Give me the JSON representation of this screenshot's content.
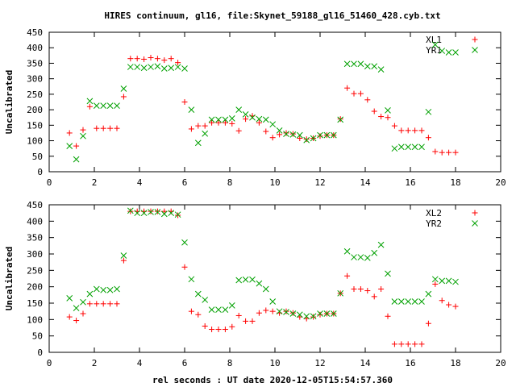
{
  "page": {
    "title": "HIRES continuum, gl16, file:Skynet_59188_gl16_51460_428.cyb.txt",
    "xlabel": "rel seconds : UT date 2020-12-05T15:54:57.360"
  },
  "colors": {
    "series_1": "#ff0000",
    "series_2": "#00a000",
    "axes": "#000000"
  },
  "chart_data": [
    {
      "type": "scatter",
      "title": "HIRES continuum, gl16, file:Skynet_59188_gl16_51460_428.cyb.txt",
      "xlabel": "",
      "ylabel": "Uncalibrated",
      "xlim": [
        0,
        20
      ],
      "ylim": [
        0,
        450
      ],
      "xticks": [
        0,
        2,
        4,
        6,
        8,
        10,
        12,
        14,
        16,
        18,
        20
      ],
      "yticks": [
        0,
        50,
        100,
        150,
        200,
        250,
        300,
        350,
        400,
        450
      ],
      "grid": false,
      "legend": "top-right",
      "series": [
        {
          "name": "XL1",
          "marker": "plus",
          "color": "#ff0000",
          "points": [
            [
              0.9,
              125
            ],
            [
              1.2,
              83
            ],
            [
              1.5,
              135
            ],
            [
              1.8,
              210
            ],
            [
              2.1,
              140
            ],
            [
              2.4,
              140
            ],
            [
              2.7,
              140
            ],
            [
              3.0,
              140
            ],
            [
              3.3,
              242
            ],
            [
              3.6,
              365
            ],
            [
              3.9,
              365
            ],
            [
              4.2,
              363
            ],
            [
              4.5,
              368
            ],
            [
              4.8,
              365
            ],
            [
              5.1,
              360
            ],
            [
              5.4,
              365
            ],
            [
              5.7,
              352
            ],
            [
              6.0,
              225
            ],
            [
              6.3,
              138
            ],
            [
              6.6,
              148
            ],
            [
              6.9,
              148
            ],
            [
              7.2,
              158
            ],
            [
              7.5,
              158
            ],
            [
              7.8,
              158
            ],
            [
              8.1,
              155
            ],
            [
              8.4,
              132
            ],
            [
              8.7,
              170
            ],
            [
              9.0,
              180
            ],
            [
              9.3,
              158
            ],
            [
              9.6,
              130
            ],
            [
              9.9,
              110
            ],
            [
              10.2,
              120
            ],
            [
              10.5,
              125
            ],
            [
              10.8,
              122
            ],
            [
              11.1,
              108
            ],
            [
              11.4,
              105
            ],
            [
              11.7,
              108
            ],
            [
              12.0,
              115
            ],
            [
              12.3,
              118
            ],
            [
              12.6,
              118
            ],
            [
              12.9,
              170
            ],
            [
              13.2,
              270
            ],
            [
              13.5,
              252
            ],
            [
              13.8,
              252
            ],
            [
              14.1,
              232
            ],
            [
              14.4,
              195
            ],
            [
              14.7,
              178
            ],
            [
              15.0,
              175
            ],
            [
              15.3,
              148
            ],
            [
              15.6,
              133
            ],
            [
              15.9,
              133
            ],
            [
              16.2,
              133
            ],
            [
              16.5,
              133
            ],
            [
              16.8,
              110
            ],
            [
              17.1,
              65
            ],
            [
              17.4,
              62
            ],
            [
              17.7,
              62
            ],
            [
              18.0,
              62
            ]
          ]
        },
        {
          "name": "YR1",
          "marker": "cross",
          "color": "#00a000",
          "points": [
            [
              0.9,
              83
            ],
            [
              1.2,
              40
            ],
            [
              1.5,
              115
            ],
            [
              1.8,
              228
            ],
            [
              2.1,
              213
            ],
            [
              2.4,
              213
            ],
            [
              2.7,
              213
            ],
            [
              3.0,
              213
            ],
            [
              3.3,
              268
            ],
            [
              3.6,
              338
            ],
            [
              3.9,
              338
            ],
            [
              4.2,
              335
            ],
            [
              4.5,
              338
            ],
            [
              4.8,
              340
            ],
            [
              5.1,
              333
            ],
            [
              5.4,
              335
            ],
            [
              5.7,
              338
            ],
            [
              6.0,
              333
            ],
            [
              6.3,
              200
            ],
            [
              6.6,
              93
            ],
            [
              6.9,
              123
            ],
            [
              7.2,
              168
            ],
            [
              7.5,
              168
            ],
            [
              7.8,
              168
            ],
            [
              8.1,
              172
            ],
            [
              8.4,
              200
            ],
            [
              8.7,
              185
            ],
            [
              9.0,
              175
            ],
            [
              9.3,
              170
            ],
            [
              9.6,
              168
            ],
            [
              9.9,
              153
            ],
            [
              10.2,
              133
            ],
            [
              10.5,
              122
            ],
            [
              10.8,
              120
            ],
            [
              11.1,
              118
            ],
            [
              11.4,
              102
            ],
            [
              11.7,
              108
            ],
            [
              12.0,
              118
            ],
            [
              12.3,
              118
            ],
            [
              12.6,
              118
            ],
            [
              12.9,
              168
            ],
            [
              13.2,
              348
            ],
            [
              13.5,
              348
            ],
            [
              13.8,
              348
            ],
            [
              14.1,
              340
            ],
            [
              14.4,
              340
            ],
            [
              14.7,
              330
            ],
            [
              15.0,
              198
            ],
            [
              15.3,
              75
            ],
            [
              15.6,
              80
            ],
            [
              15.9,
              80
            ],
            [
              16.2,
              80
            ],
            [
              16.5,
              80
            ],
            [
              16.8,
              193
            ],
            [
              17.1,
              410
            ],
            [
              17.4,
              390
            ],
            [
              17.7,
              385
            ],
            [
              18.0,
              385
            ]
          ]
        }
      ]
    },
    {
      "type": "scatter",
      "title": "",
      "xlabel": "rel seconds : UT date 2020-12-05T15:54:57.360",
      "ylabel": "Uncalibrated",
      "xlim": [
        0,
        20
      ],
      "ylim": [
        0,
        450
      ],
      "xticks": [
        0,
        2,
        4,
        6,
        8,
        10,
        12,
        14,
        16,
        18,
        20
      ],
      "yticks": [
        0,
        50,
        100,
        150,
        200,
        250,
        300,
        350,
        400,
        450
      ],
      "grid": false,
      "legend": "top-right",
      "series": [
        {
          "name": "XL2",
          "marker": "plus",
          "color": "#ff0000",
          "points": [
            [
              0.9,
              108
            ],
            [
              1.2,
              97
            ],
            [
              1.5,
              118
            ],
            [
              1.8,
              148
            ],
            [
              2.1,
              148
            ],
            [
              2.4,
              148
            ],
            [
              2.7,
              148
            ],
            [
              3.0,
              148
            ],
            [
              3.3,
              280
            ],
            [
              3.6,
              430
            ],
            [
              3.9,
              430
            ],
            [
              4.2,
              430
            ],
            [
              4.5,
              430
            ],
            [
              4.8,
              430
            ],
            [
              5.1,
              430
            ],
            [
              5.4,
              430
            ],
            [
              5.7,
              418
            ],
            [
              6.0,
              260
            ],
            [
              6.3,
              125
            ],
            [
              6.6,
              115
            ],
            [
              6.9,
              80
            ],
            [
              7.2,
              70
            ],
            [
              7.5,
              70
            ],
            [
              7.8,
              70
            ],
            [
              8.1,
              78
            ],
            [
              8.4,
              112
            ],
            [
              8.7,
              95
            ],
            [
              9.0,
              95
            ],
            [
              9.3,
              120
            ],
            [
              9.6,
              128
            ],
            [
              9.9,
              125
            ],
            [
              10.2,
              120
            ],
            [
              10.5,
              125
            ],
            [
              10.8,
              120
            ],
            [
              11.1,
              108
            ],
            [
              11.4,
              103
            ],
            [
              11.7,
              108
            ],
            [
              12.0,
              115
            ],
            [
              12.3,
              118
            ],
            [
              12.6,
              118
            ],
            [
              12.9,
              180
            ],
            [
              13.2,
              233
            ],
            [
              13.5,
              193
            ],
            [
              13.8,
              193
            ],
            [
              14.1,
              188
            ],
            [
              14.4,
              170
            ],
            [
              14.7,
              193
            ],
            [
              15.0,
              110
            ],
            [
              15.3,
              25
            ],
            [
              15.6,
              25
            ],
            [
              15.9,
              25
            ],
            [
              16.2,
              25
            ],
            [
              16.5,
              25
            ],
            [
              16.8,
              88
            ],
            [
              17.1,
              208
            ],
            [
              17.4,
              158
            ],
            [
              17.7,
              145
            ],
            [
              18.0,
              140
            ]
          ]
        },
        {
          "name": "YR2",
          "marker": "cross",
          "color": "#00a000",
          "points": [
            [
              0.9,
              165
            ],
            [
              1.2,
              135
            ],
            [
              1.5,
              153
            ],
            [
              1.8,
              178
            ],
            [
              2.1,
              193
            ],
            [
              2.4,
              190
            ],
            [
              2.7,
              190
            ],
            [
              3.0,
              193
            ],
            [
              3.3,
              295
            ],
            [
              3.6,
              432
            ],
            [
              3.9,
              425
            ],
            [
              4.2,
              425
            ],
            [
              4.5,
              428
            ],
            [
              4.8,
              428
            ],
            [
              5.1,
              422
            ],
            [
              5.4,
              425
            ],
            [
              5.7,
              420
            ],
            [
              6.0,
              335
            ],
            [
              6.3,
              223
            ],
            [
              6.6,
              178
            ],
            [
              6.9,
              160
            ],
            [
              7.2,
              130
            ],
            [
              7.5,
              130
            ],
            [
              7.8,
              130
            ],
            [
              8.1,
              143
            ],
            [
              8.4,
              220
            ],
            [
              8.7,
              222
            ],
            [
              9.0,
              222
            ],
            [
              9.3,
              210
            ],
            [
              9.6,
              193
            ],
            [
              9.9,
              155
            ],
            [
              10.2,
              125
            ],
            [
              10.5,
              123
            ],
            [
              10.8,
              118
            ],
            [
              11.1,
              115
            ],
            [
              11.4,
              110
            ],
            [
              11.7,
              110
            ],
            [
              12.0,
              118
            ],
            [
              12.3,
              118
            ],
            [
              12.6,
              118
            ],
            [
              12.9,
              180
            ],
            [
              13.2,
              308
            ],
            [
              13.5,
              290
            ],
            [
              13.8,
              290
            ],
            [
              14.1,
              288
            ],
            [
              14.4,
              303
            ],
            [
              14.7,
              328
            ],
            [
              15.0,
              240
            ],
            [
              15.3,
              155
            ],
            [
              15.6,
              155
            ],
            [
              15.9,
              155
            ],
            [
              16.2,
              155
            ],
            [
              16.5,
              155
            ],
            [
              16.8,
              178
            ],
            [
              17.1,
              223
            ],
            [
              17.4,
              218
            ],
            [
              17.7,
              218
            ],
            [
              18.0,
              215
            ]
          ]
        }
      ]
    }
  ]
}
